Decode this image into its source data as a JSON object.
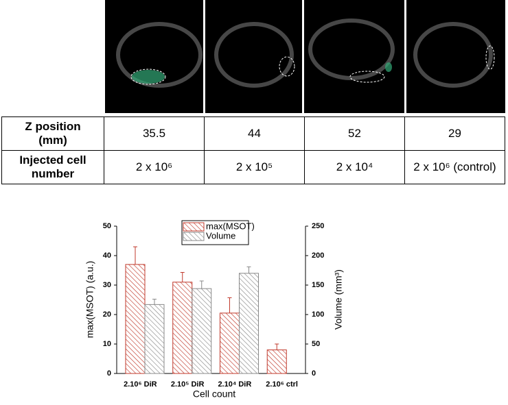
{
  "table": {
    "rows": [
      [
        "Z position\n(mm)",
        "35.5",
        "44",
        "52",
        "29"
      ],
      [
        "Injected cell\nnumber",
        "2 x 10⁶",
        "2 x 10⁵",
        "2 x 10⁴",
        "2 x 10⁶ (control)"
      ]
    ]
  },
  "chart_data": {
    "type": "bar",
    "xlabel": "Cell count",
    "ylabel": "max(MSOT) (a.u.)",
    "y2label": "Volume (mm³)",
    "categories": [
      "2.10⁶ DiR",
      "2.10⁵ DiR",
      "2.10⁴ DiR",
      "2.10⁶ ctrl"
    ],
    "series": [
      {
        "name": "max(MSOT)",
        "color": "#c0392b",
        "values": [
          37,
          31,
          20.5,
          8
        ],
        "errors": [
          6,
          3.3,
          5.2,
          2
        ]
      },
      {
        "name": "Volume",
        "color": "#888888",
        "axis": "y2",
        "values": [
          117,
          144,
          170,
          null
        ],
        "errors": [
          9,
          13,
          11,
          null
        ]
      }
    ],
    "ylim": [
      0,
      50
    ],
    "yticks": [
      0,
      10,
      20,
      30,
      40,
      50
    ],
    "y2lim": [
      0,
      250
    ],
    "y2ticks": [
      0,
      50,
      100,
      150,
      200,
      250
    ],
    "hatch": true
  }
}
